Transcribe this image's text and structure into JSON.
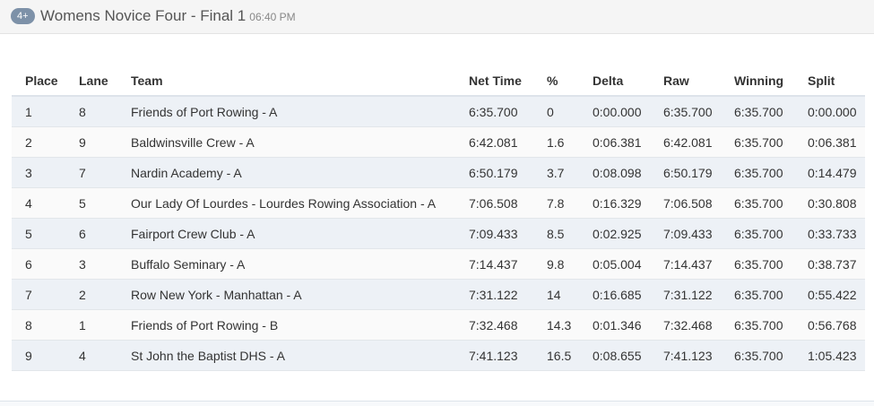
{
  "header": {
    "badge": "4+",
    "title": "Womens Novice Four - Final 1",
    "time": "06:40 PM"
  },
  "table": {
    "columns": [
      "Place",
      "Lane",
      "Team",
      "Net Time",
      "%",
      "Delta",
      "Raw",
      "Winning",
      "Split"
    ],
    "rows": [
      [
        "1",
        "8",
        "Friends of Port Rowing - A",
        "6:35.700",
        "0",
        "0:00.000",
        "6:35.700",
        "6:35.700",
        "0:00.000"
      ],
      [
        "2",
        "9",
        "Baldwinsville Crew - A",
        "6:42.081",
        "1.6",
        "0:06.381",
        "6:42.081",
        "6:35.700",
        "0:06.381"
      ],
      [
        "3",
        "7",
        "Nardin Academy - A",
        "6:50.179",
        "3.7",
        "0:08.098",
        "6:50.179",
        "6:35.700",
        "0:14.479"
      ],
      [
        "4",
        "5",
        "Our Lady Of Lourdes - Lourdes Rowing Association - A",
        "7:06.508",
        "7.8",
        "0:16.329",
        "7:06.508",
        "6:35.700",
        "0:30.808"
      ],
      [
        "5",
        "6",
        "Fairport Crew Club - A",
        "7:09.433",
        "8.5",
        "0:02.925",
        "7:09.433",
        "6:35.700",
        "0:33.733"
      ],
      [
        "6",
        "3",
        "Buffalo Seminary - A",
        "7:14.437",
        "9.8",
        "0:05.004",
        "7:14.437",
        "6:35.700",
        "0:38.737"
      ],
      [
        "7",
        "2",
        "Row New York - Manhattan - A",
        "7:31.122",
        "14",
        "0:16.685",
        "7:31.122",
        "6:35.700",
        "0:55.422"
      ],
      [
        "8",
        "1",
        "Friends of Port Rowing - B",
        "7:32.468",
        "14.3",
        "0:01.346",
        "7:32.468",
        "6:35.700",
        "0:56.768"
      ],
      [
        "9",
        "4",
        "St John the Baptist DHS - A",
        "7:41.123",
        "16.5",
        "0:08.655",
        "7:41.123",
        "6:35.700",
        "1:05.423"
      ]
    ]
  }
}
